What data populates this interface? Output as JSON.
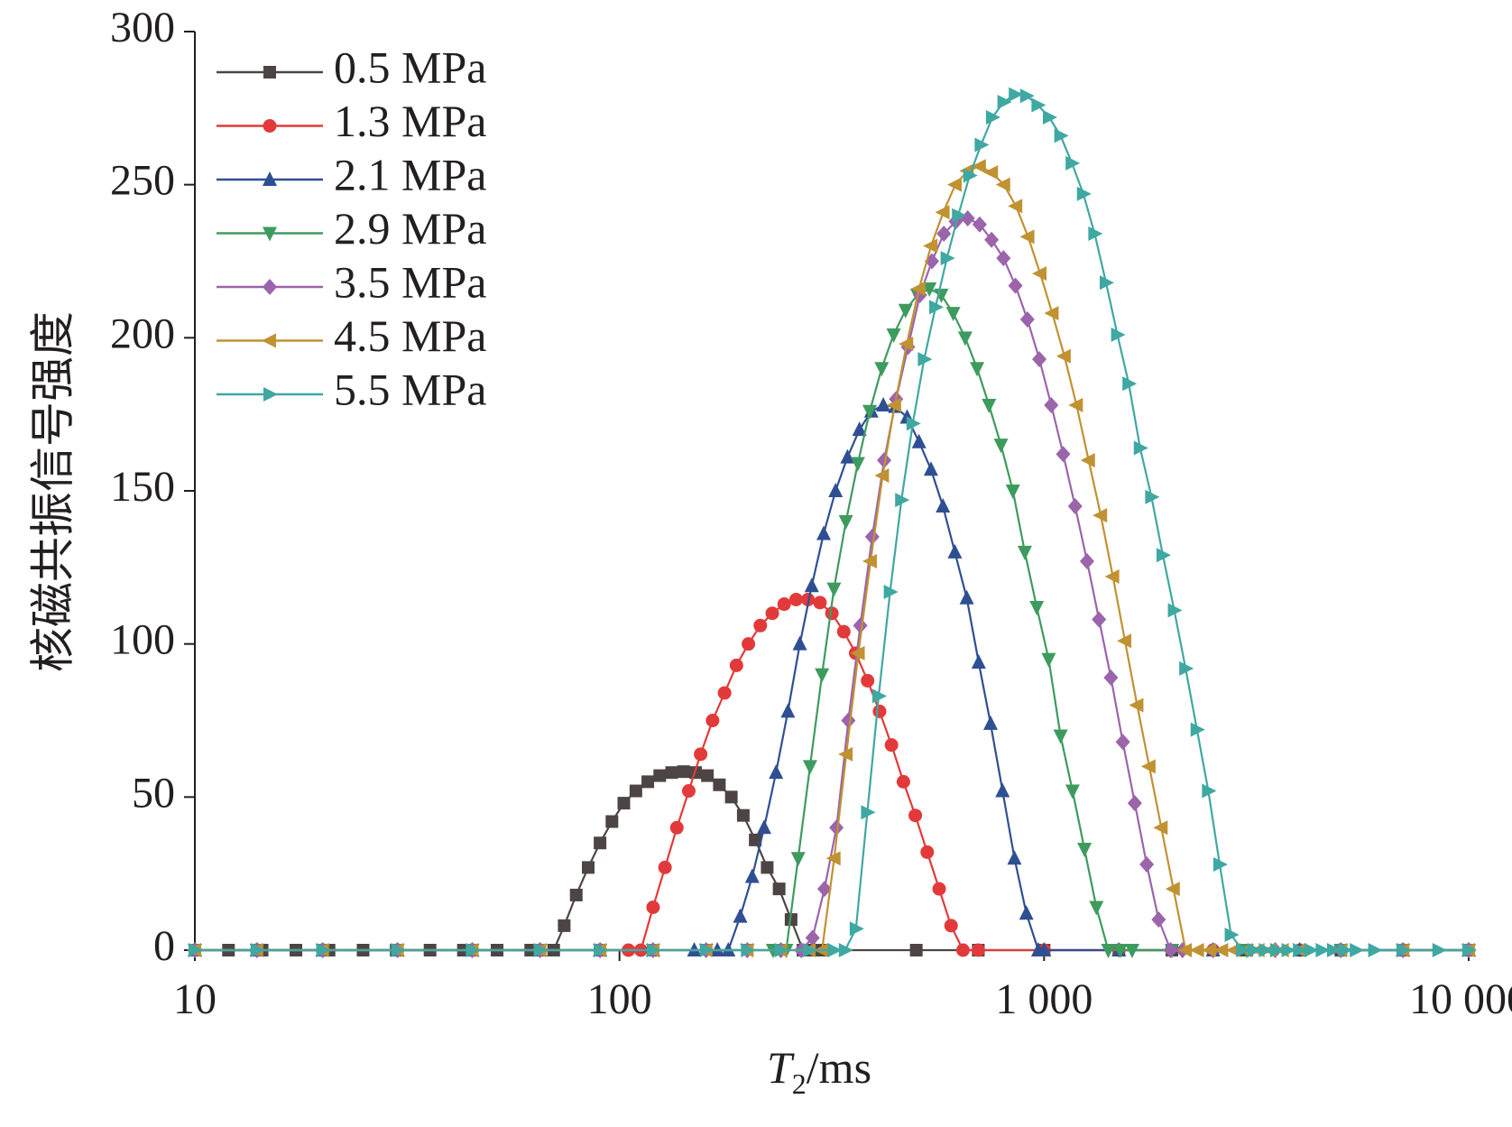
{
  "chart_data": {
    "type": "line",
    "x_scale": "log",
    "xlim": [
      10,
      10000
    ],
    "ylim": [
      0,
      300
    ],
    "xlabel": "T",
    "xlabel_sub": "2",
    "xlabel_unit": "/ms",
    "ylabel": "核磁共振信号强度",
    "x_ticks": [
      {
        "value": 10,
        "label": "10"
      },
      {
        "value": 100,
        "label": "100"
      },
      {
        "value": 1000,
        "label": "1 000"
      },
      {
        "value": 10000,
        "label": "10 000"
      }
    ],
    "y_ticks": [
      {
        "value": 0,
        "label": "0"
      },
      {
        "value": 50,
        "label": "50"
      },
      {
        "value": 100,
        "label": "100"
      },
      {
        "value": 150,
        "label": "150"
      },
      {
        "value": 200,
        "label": "200"
      },
      {
        "value": 250,
        "label": "250"
      },
      {
        "value": 300,
        "label": "300"
      }
    ],
    "legend_position": "top-left",
    "grid": false,
    "series": [
      {
        "name": "0.5 MPa",
        "color": "#4d4544",
        "marker": "square",
        "x": [
          10,
          12,
          14.4,
          17.3,
          20.7,
          24.9,
          29.8,
          35.8,
          42.9,
          51.5,
          61.8,
          70,
          74.1,
          79.1,
          84.4,
          90,
          96,
          102.4,
          109.3,
          116.6,
          124.4,
          132.7,
          141.6,
          151.1,
          161.1,
          171.9,
          183.4,
          195.7,
          208.8,
          222.8,
          237.7,
          253.6,
          270.5,
          288.6,
          300,
          500,
          700,
          1000,
          1500,
          2000,
          3000,
          5000,
          7000,
          10000
        ],
        "y": [
          0,
          0,
          0,
          0,
          0,
          0,
          0,
          0,
          0,
          0,
          0,
          0,
          8,
          18,
          27,
          35,
          42,
          48,
          52,
          55,
          57,
          58,
          58.3,
          58,
          57,
          54,
          50,
          44,
          36,
          27,
          20,
          10,
          0,
          0,
          0,
          0,
          0,
          0,
          0,
          0,
          0,
          0,
          0,
          0
        ]
      },
      {
        "name": "1.3 MPa",
        "color": "#e23a3a",
        "marker": "circle",
        "x": [
          10,
          14,
          20,
          30,
          45,
          65,
          90,
          105,
          112.3,
          120,
          128,
          136.5,
          145.6,
          155.3,
          165.7,
          176.8,
          188.6,
          201.2,
          214.6,
          229,
          244.3,
          260.6,
          278,
          296.6,
          316.4,
          337.5,
          360,
          384,
          409.7,
          437.1,
          466.3,
          497.4,
          530.6,
          566.1,
          603.9,
          644.2,
          700,
          1000,
          1500,
          2500,
          4000,
          7000,
          10000
        ],
        "y": [
          0,
          0,
          0,
          0,
          0,
          0,
          0,
          0,
          0,
          14,
          27,
          40,
          52,
          64,
          75,
          84,
          93,
          100,
          106,
          110,
          113,
          114.5,
          114.5,
          113.5,
          110,
          104,
          97,
          88,
          78,
          67,
          55,
          44,
          32,
          20,
          8,
          0,
          0,
          0,
          0,
          0,
          0,
          0,
          0
        ]
      },
      {
        "name": "2.1 MPa",
        "color": "#2f4f93",
        "marker": "triangle-up",
        "x": [
          10,
          14,
          20,
          30,
          45,
          65,
          90,
          120,
          150,
          170,
          180.4,
          192.5,
          205.4,
          219.1,
          233.7,
          249.3,
          265.9,
          283.7,
          302.6,
          322.8,
          344.4,
          367.4,
          391.9,
          418.1,
          446,
          475.8,
          507.6,
          541.5,
          577.7,
          616.3,
          657.5,
          701.4,
          748.2,
          798.2,
          851.5,
          908.4,
          969.1,
          1000,
          1500,
          2500,
          4000,
          7000,
          10000
        ],
        "y": [
          0,
          0,
          0,
          0,
          0,
          0,
          0,
          0,
          0,
          0,
          0,
          11,
          24,
          40,
          58,
          78,
          100,
          119,
          136,
          150,
          161,
          170,
          176,
          178,
          177.5,
          174,
          166,
          157,
          145,
          130,
          115,
          94,
          74,
          52,
          30,
          12,
          0,
          0,
          0,
          0,
          0,
          0,
          0
        ]
      },
      {
        "name": "2.9 MPa",
        "color": "#3e9b5e",
        "marker": "triangle-down",
        "x": [
          10,
          14,
          20,
          30,
          45,
          65,
          90,
          120,
          160,
          200,
          230,
          247,
          263.5,
          281.1,
          299.9,
          320,
          341.4,
          364.2,
          388.5,
          414.5,
          442.2,
          471.7,
          503.2,
          536.9,
          572.8,
          611,
          651.9,
          695.4,
          741.9,
          791.5,
          844.4,
          900.8,
          961,
          1025.2,
          1093.7,
          1166.8,
          1244.8,
          1328,
          1416.7,
          1511.4,
          1612.4,
          2000,
          3000,
          5000,
          7000,
          10000
        ],
        "y": [
          0,
          0,
          0,
          0,
          0,
          0,
          0,
          0,
          0,
          0,
          0,
          0,
          30,
          60,
          90,
          118,
          140,
          159,
          176,
          190,
          201,
          209,
          214,
          216,
          214,
          208,
          200,
          190,
          178,
          165,
          150,
          130,
          112,
          95,
          70,
          52,
          33,
          14,
          0,
          0,
          0,
          0,
          0,
          0,
          0,
          0
        ]
      },
      {
        "name": "3.5 MPa",
        "color": "#9b64ab",
        "marker": "diamond",
        "x": [
          10,
          14,
          20,
          30,
          45,
          65,
          90,
          120,
          160,
          200,
          240,
          268,
          285,
          304,
          324.3,
          346,
          369.1,
          393.8,
          420.1,
          448.2,
          478.2,
          510.2,
          544.3,
          580.7,
          619.5,
          660.9,
          705.1,
          752.2,
          802.5,
          856.2,
          913.4,
          974.5,
          1039.6,
          1109.1,
          1183.3,
          1262.4,
          1346.8,
          1436.8,
          1532.9,
          1635.4,
          1744.7,
          1861.3,
          1985.8,
          2118.5,
          2500,
          3500,
          5000,
          7000,
          10000
        ],
        "y": [
          0,
          0,
          0,
          0,
          0,
          0,
          0,
          0,
          0,
          0,
          0,
          0,
          4,
          20,
          40,
          75,
          106,
          135,
          160,
          180,
          197,
          214,
          225,
          234,
          238,
          239,
          237,
          232,
          226,
          217,
          206,
          193,
          178,
          162,
          145,
          127,
          108,
          89,
          68,
          48,
          28,
          10,
          0,
          0,
          0,
          0,
          0,
          0,
          0
        ]
      },
      {
        "name": "4.5 MPa",
        "color": "#c09232",
        "marker": "triangle-left",
        "x": [
          10,
          14,
          20,
          30,
          45,
          65,
          90,
          120,
          160,
          200,
          240,
          280,
          300,
          320.4,
          342.2,
          365.4,
          390.2,
          416.7,
          445,
          475.2,
          507.5,
          542,
          578.8,
          618.1,
          660,
          704.9,
          752.8,
          803.9,
          858.5,
          916.8,
          979.1,
          1045.6,
          1116.6,
          1192.4,
          1273.4,
          1359.9,
          1452.2,
          1550.8,
          1656.1,
          1768.6,
          1888.7,
          2017,
          2154,
          2300.2,
          2456.4,
          2623.2,
          2801.4,
          2991.6,
          3194.8,
          3411.8,
          3643.5,
          4000,
          5000,
          7000,
          10000
        ],
        "y": [
          0,
          0,
          0,
          0,
          0,
          0,
          0,
          0,
          0,
          0,
          0,
          0,
          0,
          30,
          64,
          97,
          127,
          155,
          178,
          198,
          216,
          230,
          241,
          250,
          254.5,
          256,
          254,
          250,
          243,
          233,
          221,
          208,
          194,
          178,
          160,
          142,
          122,
          101,
          80,
          60,
          40,
          20,
          0,
          0,
          0,
          0,
          0,
          0,
          0,
          0,
          0,
          0,
          0,
          0,
          0
        ]
      },
      {
        "name": "5.5 MPa",
        "color": "#3fa8a2",
        "marker": "triangle-right",
        "x": [
          10,
          14,
          20,
          30,
          45,
          65,
          90,
          120,
          160,
          200,
          240,
          280,
          320,
          340,
          360.6,
          383.5,
          407.9,
          433.8,
          461.4,
          490.7,
          521.9,
          555.1,
          590.4,
          627.9,
          667.8,
          710.2,
          755.4,
          803.4,
          854.5,
          908.8,
          966.6,
          1028.1,
          1093.4,
          1162.9,
          1236.9,
          1315.5,
          1399.1,
          1488.1,
          1582.7,
          1683.3,
          1790.3,
          1904.1,
          2025.2,
          2153.9,
          2290.9,
          2436.5,
          2591.4,
          2756.2,
          2931.4,
          3117.8,
          3316,
          3526.8,
          3751,
          3989.5,
          4243.1,
          4512.9,
          4799.8,
          5104.9,
          5429.5,
          6000,
          7000,
          8500,
          10000
        ],
        "y": [
          0,
          0,
          0,
          0,
          0,
          0,
          0,
          0,
          0,
          0,
          0,
          0,
          0,
          0,
          7,
          45,
          83,
          117,
          147,
          172,
          193,
          210,
          226,
          240,
          253,
          263,
          272,
          277,
          279.5,
          279,
          276,
          272,
          266,
          257,
          247,
          234,
          218,
          201,
          185,
          164,
          148,
          129,
          111,
          92,
          72,
          52,
          28,
          5,
          0,
          0,
          0,
          0,
          0,
          0,
          0,
          0,
          0,
          0,
          0,
          0,
          0,
          0,
          0
        ]
      }
    ]
  }
}
